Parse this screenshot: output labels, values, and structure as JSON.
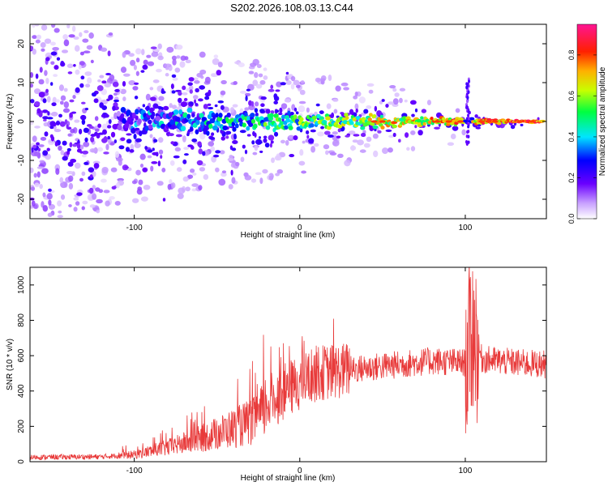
{
  "title": "S202.2026.108.03.13.C44",
  "colors": {
    "signal": "#e83a3a",
    "axis": "#000000"
  },
  "chart_data": [
    {
      "type": "heatmap",
      "xlabel": "Height of straight line (km)",
      "ylabel": "Frequency (Hz)",
      "xlim": [
        -163,
        149
      ],
      "ylim": [
        -25,
        25
      ],
      "xticks": [
        "-100",
        "0",
        "100"
      ],
      "yticks": [
        "20",
        "10",
        "0",
        "-10",
        "-20"
      ],
      "colorbar": {
        "label": "Normalized spectral amplitude",
        "range": [
          0,
          0.95
        ],
        "ticks": [
          "0.0",
          "0.2",
          "0.4",
          "0.6",
          "0.8"
        ],
        "stops": [
          "#ffffff",
          "#9b30ff",
          "#0000ff",
          "#00ffff",
          "#00ff00",
          "#ffff00",
          "#ff8000",
          "#ff0000",
          "#ff1493"
        ]
      },
      "ridge_center_hz": 0,
      "notes": "Broadband noise at low heights narrowing to a coherent line near 0 Hz; burst near 102 km"
    },
    {
      "type": "line",
      "xlabel": "Height of straight line (km)",
      "ylabel": "SNR (10 * v/v)",
      "xlim": [
        -163,
        149
      ],
      "ylim": [
        0,
        1100
      ],
      "xticks": [
        "-100",
        "0",
        "100"
      ],
      "yticks": [
        "0",
        "200",
        "400",
        "600",
        "800",
        "1000"
      ],
      "trend": [
        {
          "x": -163,
          "y": 25
        },
        {
          "x": -120,
          "y": 28
        },
        {
          "x": -100,
          "y": 40
        },
        {
          "x": -80,
          "y": 80
        },
        {
          "x": -60,
          "y": 130
        },
        {
          "x": -40,
          "y": 190
        },
        {
          "x": -25,
          "y": 240
        },
        {
          "x": -20,
          "y": 330
        },
        {
          "x": -10,
          "y": 390
        },
        {
          "x": 0,
          "y": 450
        },
        {
          "x": 10,
          "y": 500
        },
        {
          "x": 20,
          "y": 510
        },
        {
          "x": 40,
          "y": 530
        },
        {
          "x": 60,
          "y": 550
        },
        {
          "x": 80,
          "y": 570
        },
        {
          "x": 100,
          "y": 560
        },
        {
          "x": 105,
          "y": 750
        },
        {
          "x": 110,
          "y": 580
        },
        {
          "x": 130,
          "y": 560
        },
        {
          "x": 149,
          "y": 550
        }
      ],
      "series": [
        {
          "name": "SNR",
          "color": "#e83a3a"
        }
      ]
    }
  ]
}
